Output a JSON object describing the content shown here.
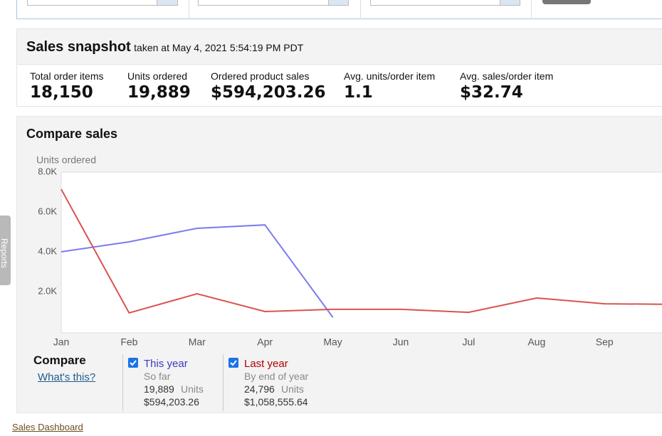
{
  "side_tab": "Reports",
  "snapshot": {
    "title": "Sales snapshot",
    "subtitle": "taken at May 4, 2021 5:54:19 PM PDT",
    "metrics": [
      {
        "label": "Total order items",
        "value": "18,150"
      },
      {
        "label": "Units ordered",
        "value": "19,889"
      },
      {
        "label": "Ordered product sales",
        "value": "$594,203.26"
      },
      {
        "label": "Avg. units/order item",
        "value": "1.1"
      },
      {
        "label": "Avg. sales/order item",
        "value": "$32.74"
      }
    ]
  },
  "compare_title": "Compare sales",
  "chart_data": {
    "type": "line",
    "y_label": "Units ordered",
    "categories": [
      "Jan",
      "Feb",
      "Mar",
      "Apr",
      "May",
      "Jun",
      "Jul",
      "Aug",
      "Sep",
      null
    ],
    "series": [
      {
        "name": "This year",
        "color": "#7b7bef",
        "values": [
          4000,
          4500,
          5180,
          5350,
          710,
          null,
          null,
          null,
          null,
          null
        ]
      },
      {
        "name": "Last year",
        "color": "#d9534f",
        "values": [
          7140,
          930,
          1890,
          1000,
          1110,
          1110,
          960,
          1680,
          1390,
          1360
        ]
      }
    ],
    "ylim": [
      0,
      8000
    ],
    "yticks": [
      {
        "value": 2000,
        "label": "2.0K"
      },
      {
        "value": 4000,
        "label": "4.0K"
      },
      {
        "value": 6000,
        "label": "6.0K"
      },
      {
        "value": 8000,
        "label": "8.0K"
      }
    ],
    "grid": false
  },
  "compare": {
    "title": "Compare",
    "link": "What's this?",
    "entries": [
      {
        "name": "This year",
        "period": "So far",
        "units": "19,889",
        "units_label": "Units",
        "sales": "$594,203.26"
      },
      {
        "name": "Last year",
        "period": "By end of year",
        "units": "24,796",
        "units_label": "Units",
        "sales": "$1,058,555.64"
      }
    ]
  },
  "footer_link": "Sales Dashboard"
}
